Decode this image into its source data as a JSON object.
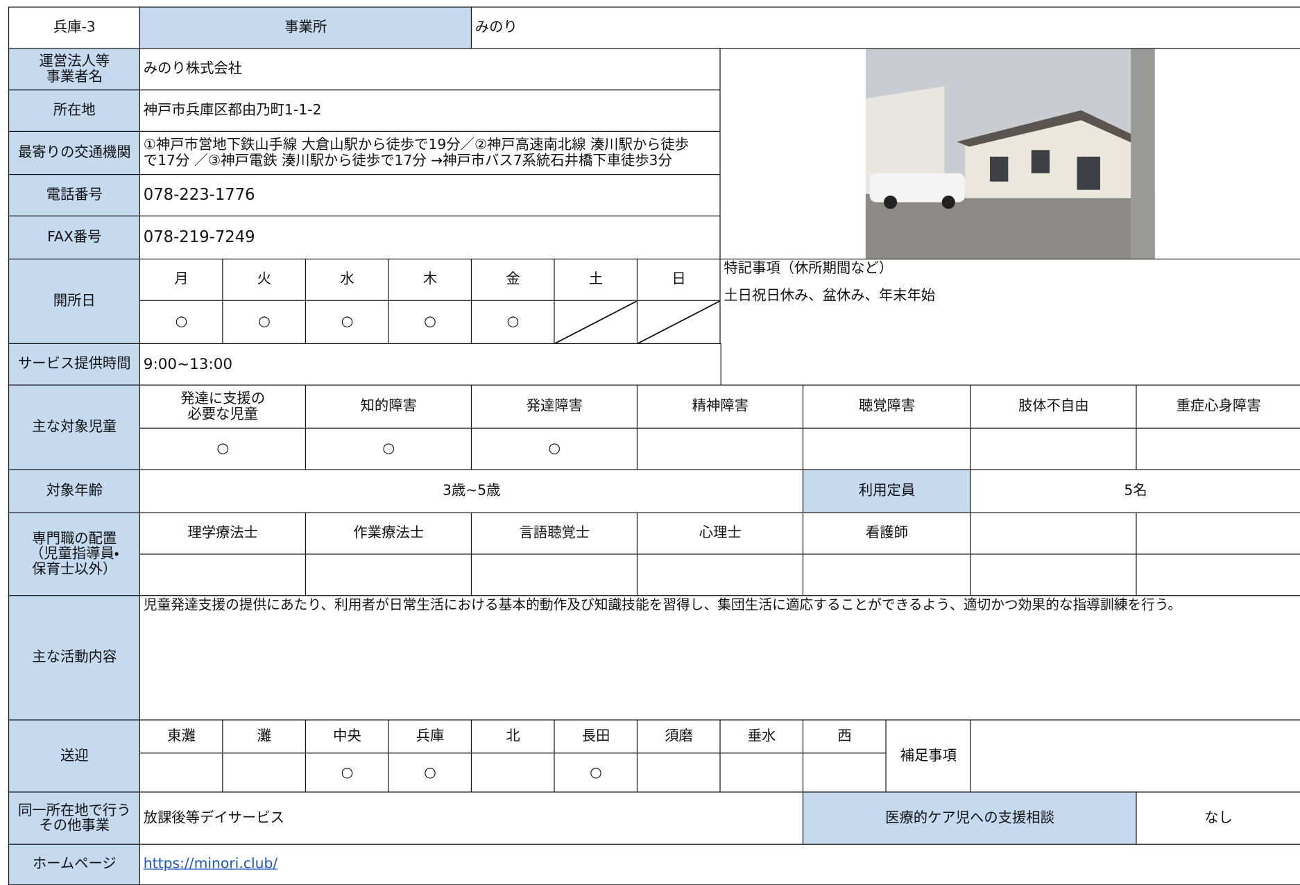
{
  "header": {
    "id": "兵庫-3",
    "office_label": "事業所",
    "office_name": "みのり"
  },
  "operator": {
    "label": [
      "運営法人等",
      "事業者名"
    ],
    "value": "みのり株式会社"
  },
  "address": {
    "label": "所在地",
    "value": "神戸市兵庫区都由乃町1-1-2"
  },
  "access": {
    "label": "最寄りの交通機関",
    "value": [
      "①神戸市営地下鉄山手線 大倉山駅から徒歩で19分／②神戸高速南北線 湊川駅から徒歩",
      "で17分 ／③神戸電鉄 湊川駅から徒歩で17分 →神戸市バス7系統石井橋下車徒歩3分"
    ]
  },
  "phone": {
    "label": "電話番号",
    "value": "078-223-1776"
  },
  "fax": {
    "label": "FAX番号",
    "value": "078-219-7249"
  },
  "open_days": {
    "label": "開所日",
    "days": [
      "月",
      "火",
      "水",
      "木",
      "金",
      "土",
      "日"
    ],
    "marks": [
      "○",
      "○",
      "○",
      "○",
      "○",
      null,
      null
    ]
  },
  "notes": {
    "label": "特記事項（休所期間など）",
    "value": "土日祝日休み、盆休み、年末年始"
  },
  "hours": {
    "label": "サービス提供時間",
    "value": "9:00~13:00"
  },
  "target_children": {
    "label": "主な対象児童",
    "categories": [
      [
        "発達に支援の",
        "必要な児童"
      ],
      "知的障害",
      "発達障害",
      "精神障害",
      "聴覚障害",
      "肢体不自由",
      "重症心身障害"
    ],
    "marks": [
      "○",
      "○",
      "○",
      null,
      null,
      null,
      null
    ]
  },
  "age": {
    "label": "対象年齢",
    "value": "3歳~5歳"
  },
  "capacity": {
    "label": "利用定員",
    "value": "5名"
  },
  "specialists": {
    "label": [
      "専門職の配置",
      "（児童指導員・",
      "保育士以外）"
    ],
    "categories": [
      "理学療法士",
      "作業療法士",
      "言語聴覚士",
      "心理士",
      "看護師",
      null,
      null
    ]
  },
  "activities": {
    "label": "主な活動内容",
    "value": "児童発達支援の提供にあたり、利用者が日常生活における基本的動作及び知識技能を習得し、集団生活に適応することができるよう、適切かつ効果的な指導訓練を行う。"
  },
  "transport": {
    "label": "送迎",
    "areas": [
      "東灘",
      "灘",
      "中央",
      "兵庫",
      "北",
      "長田",
      "須磨",
      "垂水",
      "西"
    ],
    "marks": [
      null,
      null,
      "○",
      "○",
      null,
      "○",
      null,
      null,
      null
    ],
    "note_label": "補足事項"
  },
  "other": {
    "label": [
      "同一所在地で行う",
      "その他事業"
    ],
    "value": "放課後等デイサービス",
    "consult_label": "医療的ケア児への支援相談",
    "consult_value": "なし"
  },
  "homepage": {
    "label": "ホームページ",
    "url": "https://minori.club/"
  }
}
